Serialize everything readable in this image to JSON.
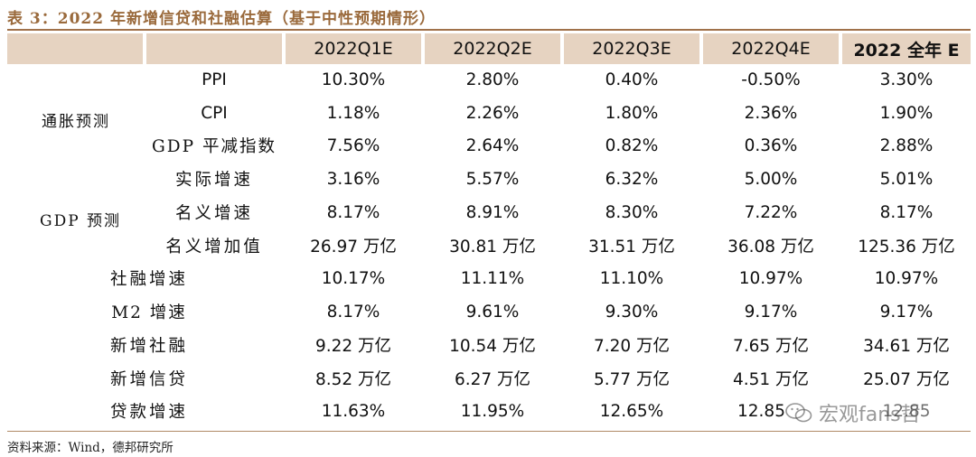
{
  "title": "表 3：2022 年新增信贷和社融估算（基于中性预期情形）",
  "columns": [
    "2022Q1E",
    "2022Q2E",
    "2022Q3E",
    "2022Q4E",
    "2022 全年 E"
  ],
  "groups": {
    "inflation": "通胀预测",
    "gdp": "GDP 预测"
  },
  "rows": [
    {
      "label": "PPI",
      "values": [
        "10.30%",
        "2.80%",
        "0.40%",
        "-0.50%",
        "3.30%"
      ]
    },
    {
      "label": "CPI",
      "values": [
        "1.18%",
        "2.26%",
        "1.80%",
        "2.36%",
        "1.90%"
      ]
    },
    {
      "label": "GDP 平减指数",
      "values": [
        "7.56%",
        "2.64%",
        "0.82%",
        "0.36%",
        "2.88%"
      ]
    },
    {
      "label": "实际增速",
      "values": [
        "3.16%",
        "5.57%",
        "6.32%",
        "5.00%",
        "5.01%"
      ]
    },
    {
      "label": "名义增速",
      "values": [
        "8.17%",
        "8.91%",
        "8.30%",
        "7.22%",
        "8.17%"
      ]
    },
    {
      "label": "名义增加值",
      "values": [
        "26.97 万亿",
        "30.81 万亿",
        "31.51 万亿",
        "36.08 万亿",
        "125.36 万亿"
      ]
    },
    {
      "label": "社融增速",
      "values": [
        "10.17%",
        "11.11%",
        "11.10%",
        "10.97%",
        "10.97%"
      ]
    },
    {
      "label": "M2 增速",
      "values": [
        "8.17%",
        "9.61%",
        "9.30%",
        "9.17%",
        "9.17%"
      ]
    },
    {
      "label": "新增社融",
      "values": [
        "9.22 万亿",
        "10.54 万亿",
        "7.20 万亿",
        "7.65 万亿",
        "34.61 万亿"
      ]
    },
    {
      "label": "新增信贷",
      "values": [
        "8.52 万亿",
        "6.27 万亿",
        "5.77 万亿",
        "4.51 万亿",
        "25.07 万亿"
      ]
    },
    {
      "label": "贷款增速",
      "values": [
        "11.63%",
        "11.95%",
        "12.65%",
        "12.85",
        "12.85"
      ]
    }
  ],
  "source": "资料来源：Wind，德邦研究所",
  "watermark": {
    "icon": "wechat-icon",
    "text": "宏观fans哲"
  }
}
